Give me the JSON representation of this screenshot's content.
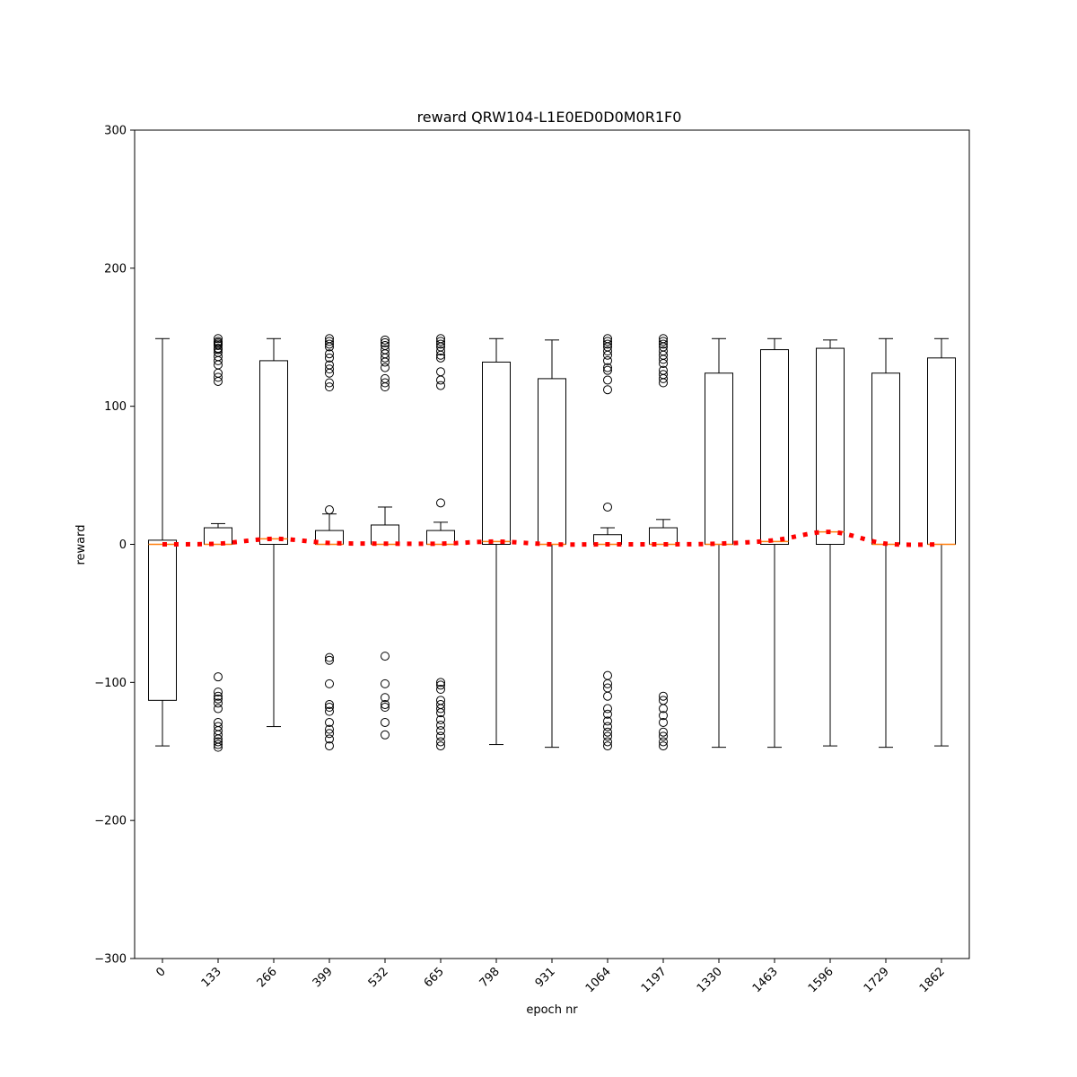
{
  "chart_data": {
    "type": "box",
    "title": "reward QRW104-L1E0ED0D0M0R1F0",
    "xlabel": "epoch nr",
    "ylabel": "reward",
    "ylim": [
      -300,
      300
    ],
    "yticks": [
      -300,
      -200,
      -100,
      0,
      100,
      200,
      300
    ],
    "ytick_labels": [
      "−300",
      "−200",
      "−100",
      "0",
      "100",
      "200",
      "300"
    ],
    "categories": [
      "0",
      "133",
      "266",
      "399",
      "532",
      "665",
      "798",
      "931",
      "1064",
      "1197",
      "1330",
      "1463",
      "1596",
      "1729",
      "1862"
    ],
    "boxes": [
      {
        "q1": -113,
        "median": 0,
        "q3": 3,
        "whisker_low": -146,
        "whisker_high": 149,
        "outliers": []
      },
      {
        "q1": 0,
        "median": 0,
        "q3": 12,
        "whisker_low": 0,
        "whisker_high": 15,
        "outliers": [
          149,
          147,
          146,
          145,
          144,
          142,
          141,
          139,
          136,
          133,
          130,
          124,
          121,
          118,
          -96,
          -107,
          -110,
          -112,
          -115,
          -119,
          -129,
          -132,
          -135,
          -138,
          -141,
          -143,
          -145,
          -147
        ]
      },
      {
        "q1": 0,
        "median": 4,
        "q3": 133,
        "whisker_low": -132,
        "whisker_high": 149,
        "outliers": []
      },
      {
        "q1": 0,
        "median": 0,
        "q3": 10,
        "whisker_low": 0,
        "whisker_high": 22,
        "outliers": [
          149,
          147,
          145,
          143,
          138,
          135,
          130,
          127,
          124,
          117,
          114,
          25,
          -82,
          -84,
          -101,
          -116,
          -118,
          -121,
          -129,
          -134,
          -137,
          -141,
          -146
        ]
      },
      {
        "q1": 0,
        "median": 0,
        "q3": 14,
        "whisker_low": 0,
        "whisker_high": 27,
        "outliers": [
          148,
          146,
          144,
          141,
          138,
          135,
          132,
          128,
          120,
          117,
          114,
          -81,
          -101,
          -111,
          -116,
          -118,
          -129,
          -138
        ]
      },
      {
        "q1": 0,
        "median": 0,
        "q3": 10,
        "whisker_low": 0,
        "whisker_high": 16,
        "outliers": [
          149,
          147,
          145,
          143,
          140,
          137,
          135,
          125,
          119,
          115,
          30,
          -100,
          -102,
          -105,
          -113,
          -116,
          -119,
          -122,
          -127,
          -131,
          -135,
          -139,
          -143,
          -146
        ]
      },
      {
        "q1": 0,
        "median": 2,
        "q3": 132,
        "whisker_low": -145,
        "whisker_high": 149,
        "outliers": []
      },
      {
        "q1": 0,
        "median": 0,
        "q3": 120,
        "whisker_low": -147,
        "whisker_high": 148,
        "outliers": []
      },
      {
        "q1": 0,
        "median": 0,
        "q3": 7,
        "whisker_low": 0,
        "whisker_high": 12,
        "outliers": [
          149,
          147,
          145,
          143,
          140,
          137,
          133,
          128,
          126,
          119,
          112,
          27,
          -95,
          -101,
          -104,
          -110,
          -119,
          -123,
          -128,
          -132,
          -136,
          -139,
          -143,
          -146
        ]
      },
      {
        "q1": 0,
        "median": 0,
        "q3": 12,
        "whisker_low": 0,
        "whisker_high": 18,
        "outliers": [
          149,
          147,
          145,
          143,
          140,
          137,
          134,
          131,
          126,
          123,
          120,
          117,
          -110,
          -113,
          -119,
          -124,
          -129,
          -136,
          -139,
          -143,
          -146
        ]
      },
      {
        "q1": 0,
        "median": 0,
        "q3": 124,
        "whisker_low": -147,
        "whisker_high": 149,
        "outliers": []
      },
      {
        "q1": 0,
        "median": 2,
        "q3": 141,
        "whisker_low": -147,
        "whisker_high": 149,
        "outliers": []
      },
      {
        "q1": 0,
        "median": 9,
        "q3": 142,
        "whisker_low": -146,
        "whisker_high": 148,
        "outliers": []
      },
      {
        "q1": 0,
        "median": 0,
        "q3": 124,
        "whisker_low": -147,
        "whisker_high": 149,
        "outliers": []
      },
      {
        "q1": 0,
        "median": 0,
        "q3": 135,
        "whisker_low": -146,
        "whisker_high": 149,
        "outliers": []
      }
    ],
    "mean_line": {
      "style": "red dotted",
      "values": [
        0,
        0.5,
        4,
        1,
        0.5,
        0.5,
        2,
        0,
        0,
        0,
        0.5,
        3,
        9,
        0.5,
        0
      ]
    },
    "grid": false,
    "legend": "none"
  },
  "colors": {
    "box": "#000000",
    "median": "#ff7f0e",
    "mean_line": "#ff0000",
    "background": "#ffffff"
  }
}
